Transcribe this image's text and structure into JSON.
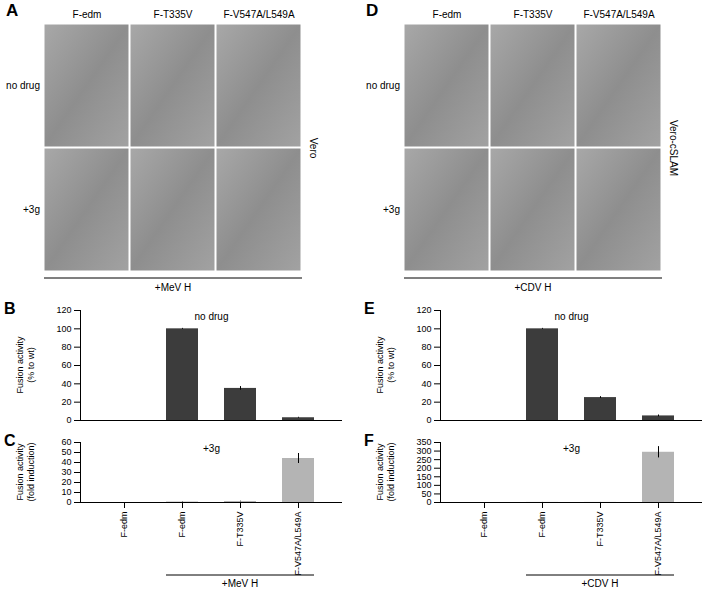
{
  "panels": [
    {
      "label": "A",
      "columns": [
        "F-edm",
        "F-T335V",
        "F-V547A/L549A"
      ],
      "rows": [
        "no drug",
        "+3g"
      ],
      "cell_line": "Vero",
      "group_label": "+MeV H"
    },
    {
      "label": "D",
      "columns": [
        "F-edm",
        "F-T335V",
        "F-V547A/L549A"
      ],
      "rows": [
        "no drug",
        "+3g"
      ],
      "cell_line": "Vero-cSLAM",
      "group_label": "+CDV H"
    }
  ],
  "chart_data": [
    {
      "label": "B",
      "type": "bar",
      "annotation": "no drug",
      "y_label": "Fusion activity (% to wt)",
      "categories": [
        "F-edm",
        "F-edm",
        "F-T335V",
        "F-V547A/L549A"
      ],
      "values": [
        0,
        100,
        35,
        3
      ],
      "errors": [
        0,
        0.5,
        2,
        0.5
      ],
      "color": "#3c3c3c",
      "ylim": [
        0,
        120
      ],
      "yticks": [
        0,
        20,
        40,
        60,
        80,
        100,
        120
      ],
      "tick_labels": "y"
    },
    {
      "label": "C",
      "type": "bar",
      "annotation": "+3g",
      "y_label": "Fusion activity (fold induction)",
      "categories": [
        "F-edm",
        "F-edm",
        "F-T335V",
        "F-V547A/L549A"
      ],
      "values": [
        0,
        0.5,
        1,
        44
      ],
      "errors": [
        0,
        0.2,
        0.3,
        5
      ],
      "color": "#b4b4b4",
      "ylim": [
        0,
        60
      ],
      "yticks": [
        0,
        10,
        20,
        30,
        40,
        50,
        60
      ],
      "group_label": "+MeV H"
    },
    {
      "label": "E",
      "type": "bar",
      "annotation": "no drug",
      "y_label": "Fusion activity (% to wt)",
      "categories": [
        "F-edm",
        "F-edm",
        "F-T335V",
        "F-V547A/L549A"
      ],
      "values": [
        0,
        100,
        25,
        5
      ],
      "errors": [
        0,
        0.5,
        1,
        1
      ],
      "color": "#3c3c3c",
      "ylim": [
        0,
        120
      ],
      "yticks": [
        0,
        20,
        40,
        60,
        80,
        100,
        120
      ],
      "tick_labels": "y"
    },
    {
      "label": "F",
      "type": "bar",
      "annotation": "+3g",
      "y_label": "Fusion activity (fold induction)",
      "categories": [
        "F-edm",
        "F-edm",
        "F-T335V",
        "F-V547A/L549A"
      ],
      "values": [
        0,
        0.5,
        0.5,
        293
      ],
      "errors": [
        0,
        0.2,
        0.2,
        33
      ],
      "color": "#b4b4b4",
      "ylim": [
        0,
        350
      ],
      "yticks": [
        0,
        50,
        100,
        150,
        200,
        250,
        300,
        350
      ],
      "group_label": "+CDV H"
    }
  ]
}
